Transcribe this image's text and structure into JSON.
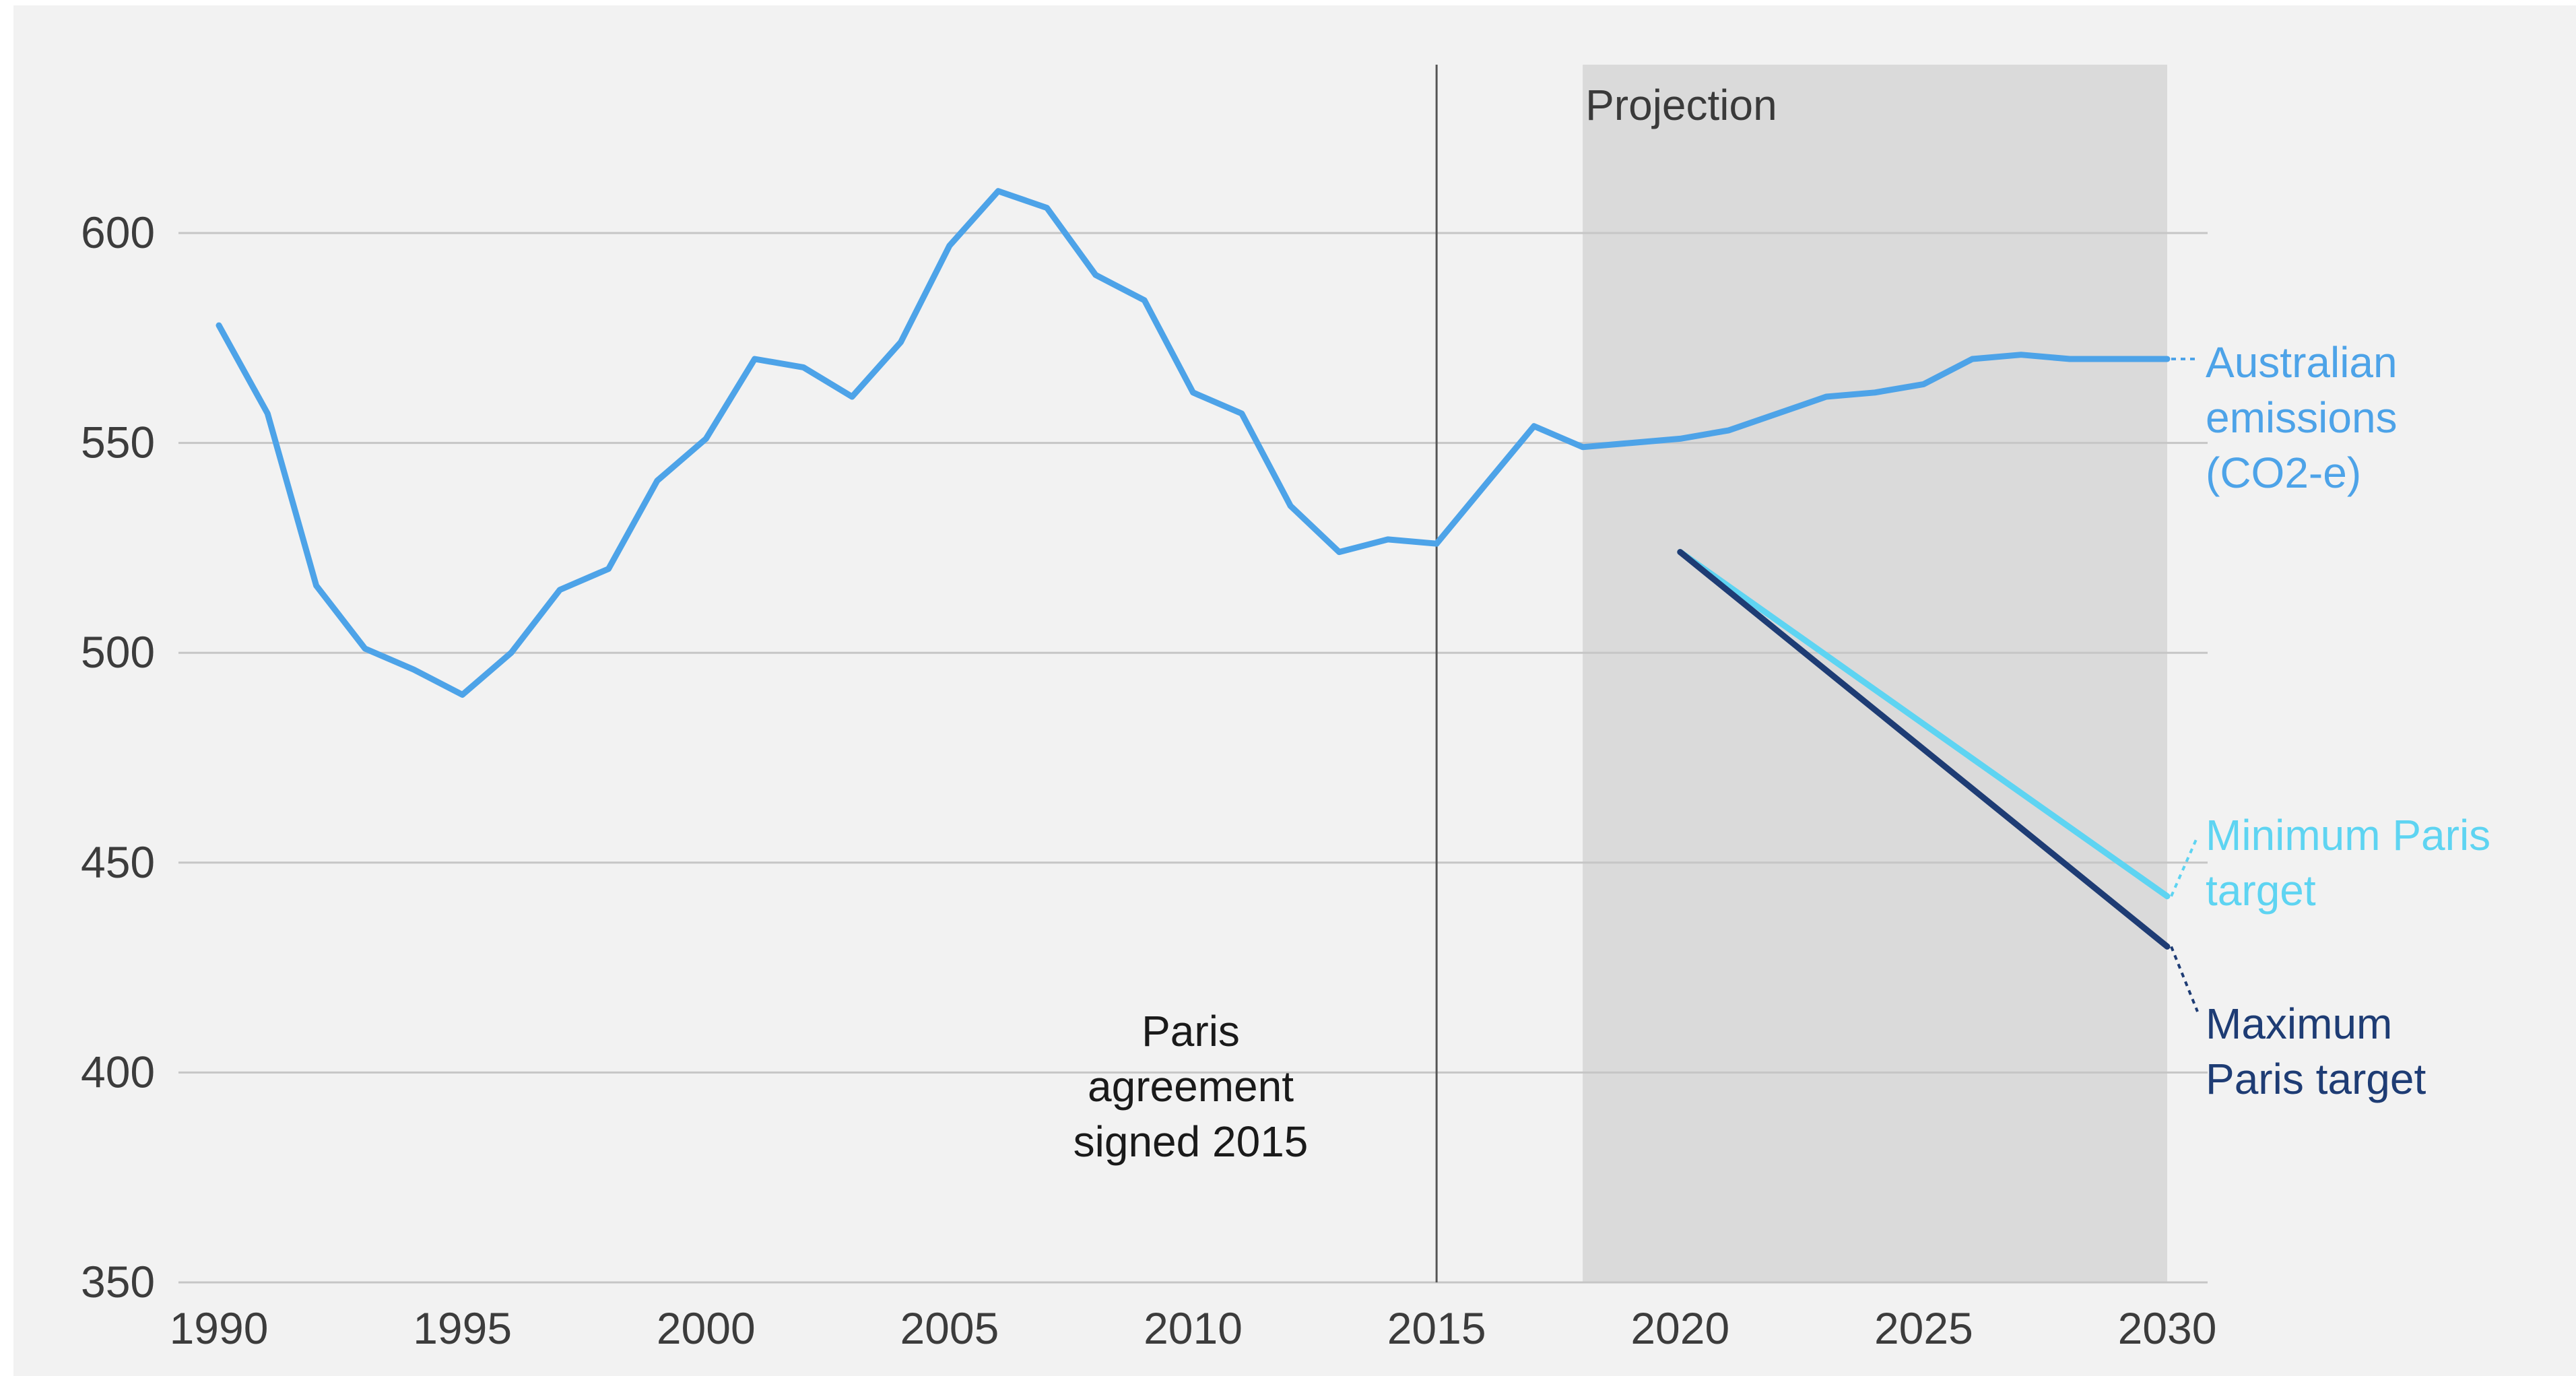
{
  "chart_data": {
    "type": "line",
    "xlim": [
      1990,
      2030
    ],
    "ylim": [
      350,
      600
    ],
    "x_ticks": [
      "1990",
      "1995",
      "2000",
      "2005",
      "2010",
      "2015",
      "2020",
      "2025",
      "2030"
    ],
    "y_ticks": [
      "350",
      "400",
      "450",
      "500",
      "550",
      "600"
    ],
    "grid": "horizontal",
    "projection_region": {
      "label": "Projection",
      "x_start": 2018,
      "x_end": 2030
    },
    "event_marker": {
      "x": 2015,
      "label_lines": [
        "Paris",
        "agreement",
        "signed 2015"
      ]
    },
    "series": [
      {
        "key": "emissions",
        "label_lines": [
          "Australian",
          "emissions",
          "(CO2-e)"
        ],
        "color": "#4da3e8",
        "x": [
          1990,
          1991,
          1992,
          1993,
          1994,
          1995,
          1996,
          1997,
          1998,
          1999,
          2000,
          2001,
          2002,
          2003,
          2004,
          2005,
          2006,
          2007,
          2008,
          2009,
          2010,
          2011,
          2012,
          2013,
          2014,
          2015,
          2016,
          2017,
          2018,
          2019,
          2020,
          2021,
          2022,
          2023,
          2024,
          2025,
          2026,
          2027,
          2028,
          2029,
          2030
        ],
        "y": [
          578,
          557,
          516,
          501,
          496,
          490,
          500,
          515,
          520,
          541,
          551,
          570,
          568,
          561,
          574,
          597,
          610,
          606,
          590,
          584,
          562,
          557,
          535,
          524,
          527,
          526,
          540,
          554,
          549,
          550,
          551,
          553,
          557,
          561,
          562,
          564,
          570,
          571,
          570,
          570,
          570
        ]
      },
      {
        "key": "min_paris",
        "label_lines": [
          "Minimum Paris",
          "target"
        ],
        "color": "#5ed4f2",
        "x": [
          2020,
          2030
        ],
        "y": [
          524,
          442
        ]
      },
      {
        "key": "max_paris",
        "label_lines": [
          "Maximum",
          "Paris target"
        ],
        "color": "#1e3c74",
        "x": [
          2020,
          2030
        ],
        "y": [
          524,
          430
        ]
      }
    ]
  }
}
